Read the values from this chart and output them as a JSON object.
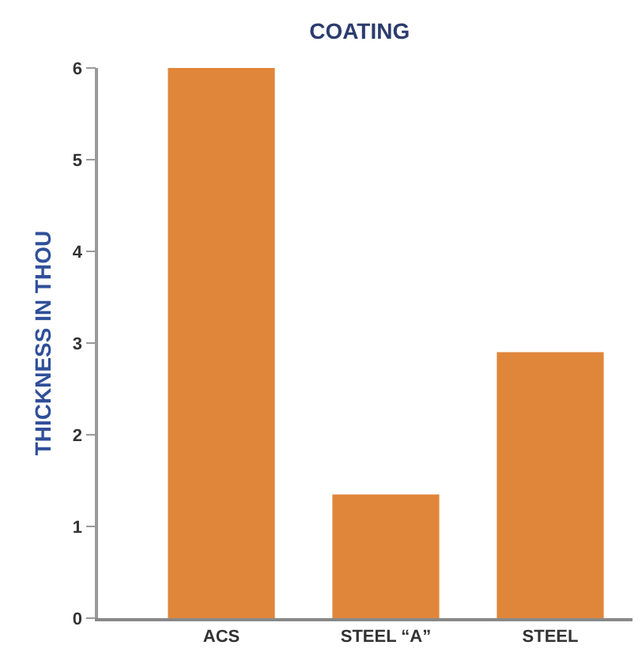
{
  "chart_data": {
    "type": "bar",
    "title": "COATING",
    "ylabel": "THICKNESS IN THOU",
    "categories": [
      "ACS",
      "STEEL “A”",
      "STEEL"
    ],
    "values": [
      6.0,
      1.35,
      2.9
    ],
    "color": "#e0863a",
    "ylim": [
      0,
      6
    ],
    "yticks": [
      0,
      1,
      2,
      3,
      4,
      5,
      6
    ]
  }
}
